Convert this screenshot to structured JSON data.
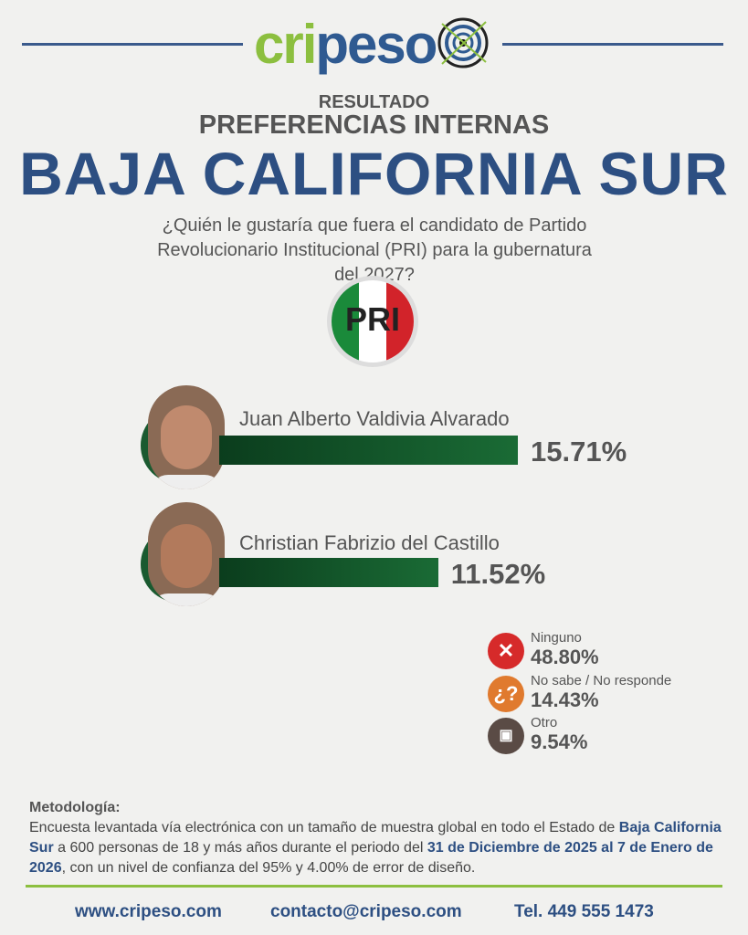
{
  "brand": {
    "logo_part1": "cri",
    "logo_part2": "peso"
  },
  "header": {
    "kicker": "RESULTADO",
    "subtitle": "PREFERENCIAS INTERNAS",
    "state": "BAJA CALIFORNIA SUR",
    "question": "¿Quién le gustaría que fuera el candidato de Partido Revolucionario Institucional (PRI) para la gubernatura del 2027?"
  },
  "party": {
    "logo_text": "PRI",
    "colors": [
      "#1a8a3a",
      "#ffffff",
      "#d2232a"
    ]
  },
  "chart_data": {
    "type": "bar",
    "orientation": "horizontal",
    "categories": [
      "Juan Alberto Valdivia Alvarado",
      "Christian Fabrizio del Castillo"
    ],
    "values": [
      15.71,
      11.52
    ],
    "labels": [
      "15.71%",
      "11.52%"
    ],
    "bar_color": "#145a2c"
  },
  "others": [
    {
      "label": "Ninguno",
      "value": "48.80%",
      "icon": "x-icon",
      "color": "#d62a2a"
    },
    {
      "label": "No sabe / No responde",
      "value": "14.43%",
      "icon": "question-icon",
      "color": "#e07a2e"
    },
    {
      "label": "Otro",
      "value": "9.54%",
      "icon": "ballot-icon",
      "color": "#5a4b45"
    }
  ],
  "methodology": {
    "title": "Metodología:",
    "t1": "Encuesta levantada vía electrónica con un tamaño de muestra global en todo el Estado de ",
    "b1": "Baja California Sur",
    "t2": " a 600 personas de 18 y más años durante el periodo del ",
    "b2": "31 de Diciembre de 2025 al 7 de Enero de 2026",
    "t3": ", con un nivel de confianza del 95% y 4.00% de error de diseño."
  },
  "footer": {
    "web": "www.cripeso.com",
    "email": "contacto@cripeso.com",
    "phone": "Tel. 449 555 1473"
  }
}
